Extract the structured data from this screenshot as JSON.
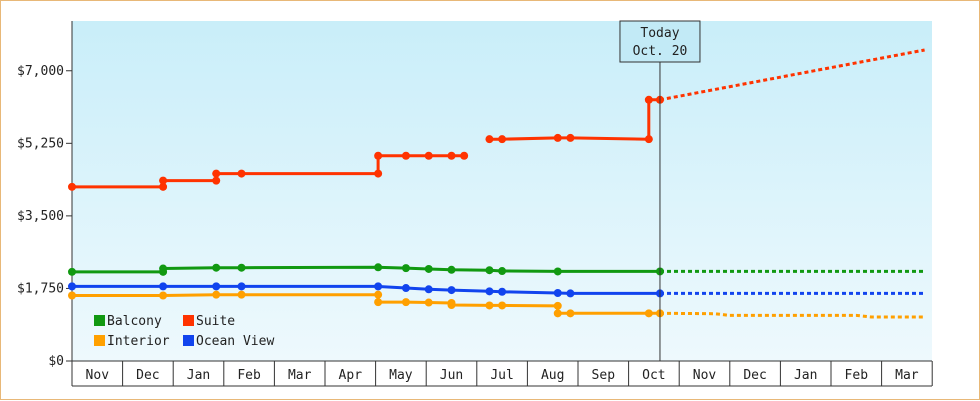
{
  "chart_data": {
    "type": "line",
    "title": "",
    "xlabel": "",
    "ylabel": "",
    "yticks": [
      "$0",
      "$1,750",
      "$3,500",
      "$5,250",
      "$7,000"
    ],
    "ytick_values": [
      0,
      1750,
      3500,
      5250,
      7000
    ],
    "ylim": [
      0,
      8200
    ],
    "months": [
      "Nov",
      "Dec",
      "Jan",
      "Feb",
      "Mar",
      "Apr",
      "May",
      "Jun",
      "Jul",
      "Aug",
      "Sep",
      "Oct",
      "Nov",
      "Dec",
      "Jan",
      "Feb",
      "Mar"
    ],
    "xlim": [
      0,
      16.85
    ],
    "today": {
      "line1": "Today",
      "line2": "Oct. 20",
      "x": 11.62
    },
    "grid": false,
    "legend_position": "bottom-left",
    "series": [
      {
        "name": "Suite",
        "color": "#ff3300",
        "segments": [
          [
            [
              0.0,
              4200
            ],
            [
              1.8,
              4200
            ],
            [
              1.8,
              4350
            ],
            [
              2.85,
              4350
            ],
            [
              2.85,
              4520
            ],
            [
              3.35,
              4520
            ],
            [
              6.05,
              4520
            ],
            [
              6.05,
              4950
            ],
            [
              6.6,
              4950
            ],
            [
              7.05,
              4950
            ],
            [
              7.5,
              4950
            ],
            [
              7.75,
              4950
            ]
          ],
          [
            [
              8.25,
              5350
            ],
            [
              8.5,
              5350
            ],
            [
              9.6,
              5380
            ],
            [
              9.85,
              5380
            ],
            [
              11.4,
              5350
            ],
            [
              11.4,
              6300
            ],
            [
              11.62,
              6300
            ]
          ]
        ],
        "markers": [
          [
            0.0,
            4200
          ],
          [
            1.8,
            4200
          ],
          [
            1.8,
            4350
          ],
          [
            2.85,
            4350
          ],
          [
            2.85,
            4520
          ],
          [
            3.35,
            4520
          ],
          [
            6.05,
            4520
          ],
          [
            6.05,
            4950
          ],
          [
            6.6,
            4950
          ],
          [
            7.05,
            4950
          ],
          [
            7.5,
            4950
          ],
          [
            7.75,
            4950
          ],
          [
            8.25,
            5350
          ],
          [
            8.5,
            5350
          ],
          [
            9.6,
            5380
          ],
          [
            9.85,
            5380
          ],
          [
            11.4,
            5350
          ],
          [
            11.4,
            6300
          ],
          [
            11.62,
            6300
          ]
        ],
        "forecast": [
          [
            11.62,
            6300
          ],
          [
            16.85,
            7500
          ]
        ]
      },
      {
        "name": "Balcony",
        "color": "#119911",
        "segments": [
          [
            [
              0.0,
              2150
            ],
            [
              1.8,
              2150
            ],
            [
              1.8,
              2230
            ],
            [
              2.85,
              2250
            ],
            [
              3.35,
              2250
            ],
            [
              6.05,
              2260
            ],
            [
              6.6,
              2240
            ],
            [
              7.05,
              2220
            ],
            [
              7.5,
              2200
            ],
            [
              8.25,
              2190
            ],
            [
              8.5,
              2170
            ],
            [
              9.6,
              2160
            ],
            [
              11.62,
              2160
            ]
          ]
        ],
        "markers": [
          [
            0.0,
            2150
          ],
          [
            1.8,
            2150
          ],
          [
            1.8,
            2230
          ],
          [
            2.85,
            2250
          ],
          [
            3.35,
            2250
          ],
          [
            6.05,
            2260
          ],
          [
            6.6,
            2240
          ],
          [
            7.05,
            2220
          ],
          [
            7.5,
            2200
          ],
          [
            8.25,
            2190
          ],
          [
            8.5,
            2170
          ],
          [
            9.6,
            2160
          ],
          [
            11.62,
            2160
          ]
        ],
        "forecast": [
          [
            11.62,
            2160
          ],
          [
            16.85,
            2160
          ]
        ]
      },
      {
        "name": "Ocean View",
        "color": "#1144ee",
        "segments": [
          [
            [
              0.0,
              1800
            ],
            [
              1.8,
              1800
            ],
            [
              2.85,
              1800
            ],
            [
              3.35,
              1800
            ],
            [
              6.05,
              1800
            ],
            [
              6.6,
              1760
            ],
            [
              7.05,
              1730
            ],
            [
              7.5,
              1710
            ],
            [
              8.25,
              1680
            ],
            [
              8.5,
              1670
            ],
            [
              9.6,
              1640
            ],
            [
              9.85,
              1630
            ],
            [
              11.62,
              1630
            ]
          ]
        ],
        "markers": [
          [
            0.0,
            1800
          ],
          [
            1.8,
            1800
          ],
          [
            2.85,
            1800
          ],
          [
            3.35,
            1800
          ],
          [
            6.05,
            1800
          ],
          [
            6.6,
            1760
          ],
          [
            7.05,
            1730
          ],
          [
            7.5,
            1710
          ],
          [
            8.25,
            1680
          ],
          [
            8.5,
            1670
          ],
          [
            9.6,
            1640
          ],
          [
            9.85,
            1630
          ],
          [
            11.62,
            1630
          ]
        ],
        "forecast": [
          [
            11.62,
            1630
          ],
          [
            16.85,
            1630
          ]
        ]
      },
      {
        "name": "Interior",
        "color": "#ffa000",
        "segments": [
          [
            [
              0.0,
              1580
            ],
            [
              1.8,
              1580
            ],
            [
              2.85,
              1600
            ],
            [
              3.35,
              1600
            ],
            [
              6.05,
              1600
            ],
            [
              6.05,
              1420
            ],
            [
              6.6,
              1420
            ],
            [
              7.05,
              1410
            ],
            [
              7.5,
              1400
            ],
            [
              7.5,
              1350
            ],
            [
              8.25,
              1340
            ],
            [
              8.5,
              1340
            ],
            [
              9.6,
              1330
            ],
            [
              9.6,
              1150
            ],
            [
              9.85,
              1150
            ],
            [
              11.4,
              1150
            ],
            [
              11.62,
              1150
            ]
          ]
        ],
        "markers": [
          [
            0.0,
            1580
          ],
          [
            1.8,
            1580
          ],
          [
            2.85,
            1600
          ],
          [
            3.35,
            1600
          ],
          [
            6.05,
            1600
          ],
          [
            6.05,
            1420
          ],
          [
            6.6,
            1420
          ],
          [
            7.05,
            1410
          ],
          [
            7.5,
            1400
          ],
          [
            7.5,
            1350
          ],
          [
            8.25,
            1340
          ],
          [
            8.5,
            1340
          ],
          [
            9.6,
            1330
          ],
          [
            9.6,
            1150
          ],
          [
            9.85,
            1150
          ],
          [
            11.4,
            1150
          ],
          [
            11.62,
            1150
          ]
        ],
        "forecast": [
          [
            11.62,
            1150
          ],
          [
            12.7,
            1140
          ],
          [
            13.0,
            1100
          ],
          [
            15.5,
            1100
          ],
          [
            15.8,
            1060
          ],
          [
            16.85,
            1060
          ]
        ]
      }
    ],
    "legend": [
      {
        "name": "Balcony",
        "color": "#119911"
      },
      {
        "name": "Suite",
        "color": "#ff3300"
      },
      {
        "name": "Interior",
        "color": "#ffa000"
      },
      {
        "name": "Ocean View",
        "color": "#1144ee"
      }
    ]
  }
}
